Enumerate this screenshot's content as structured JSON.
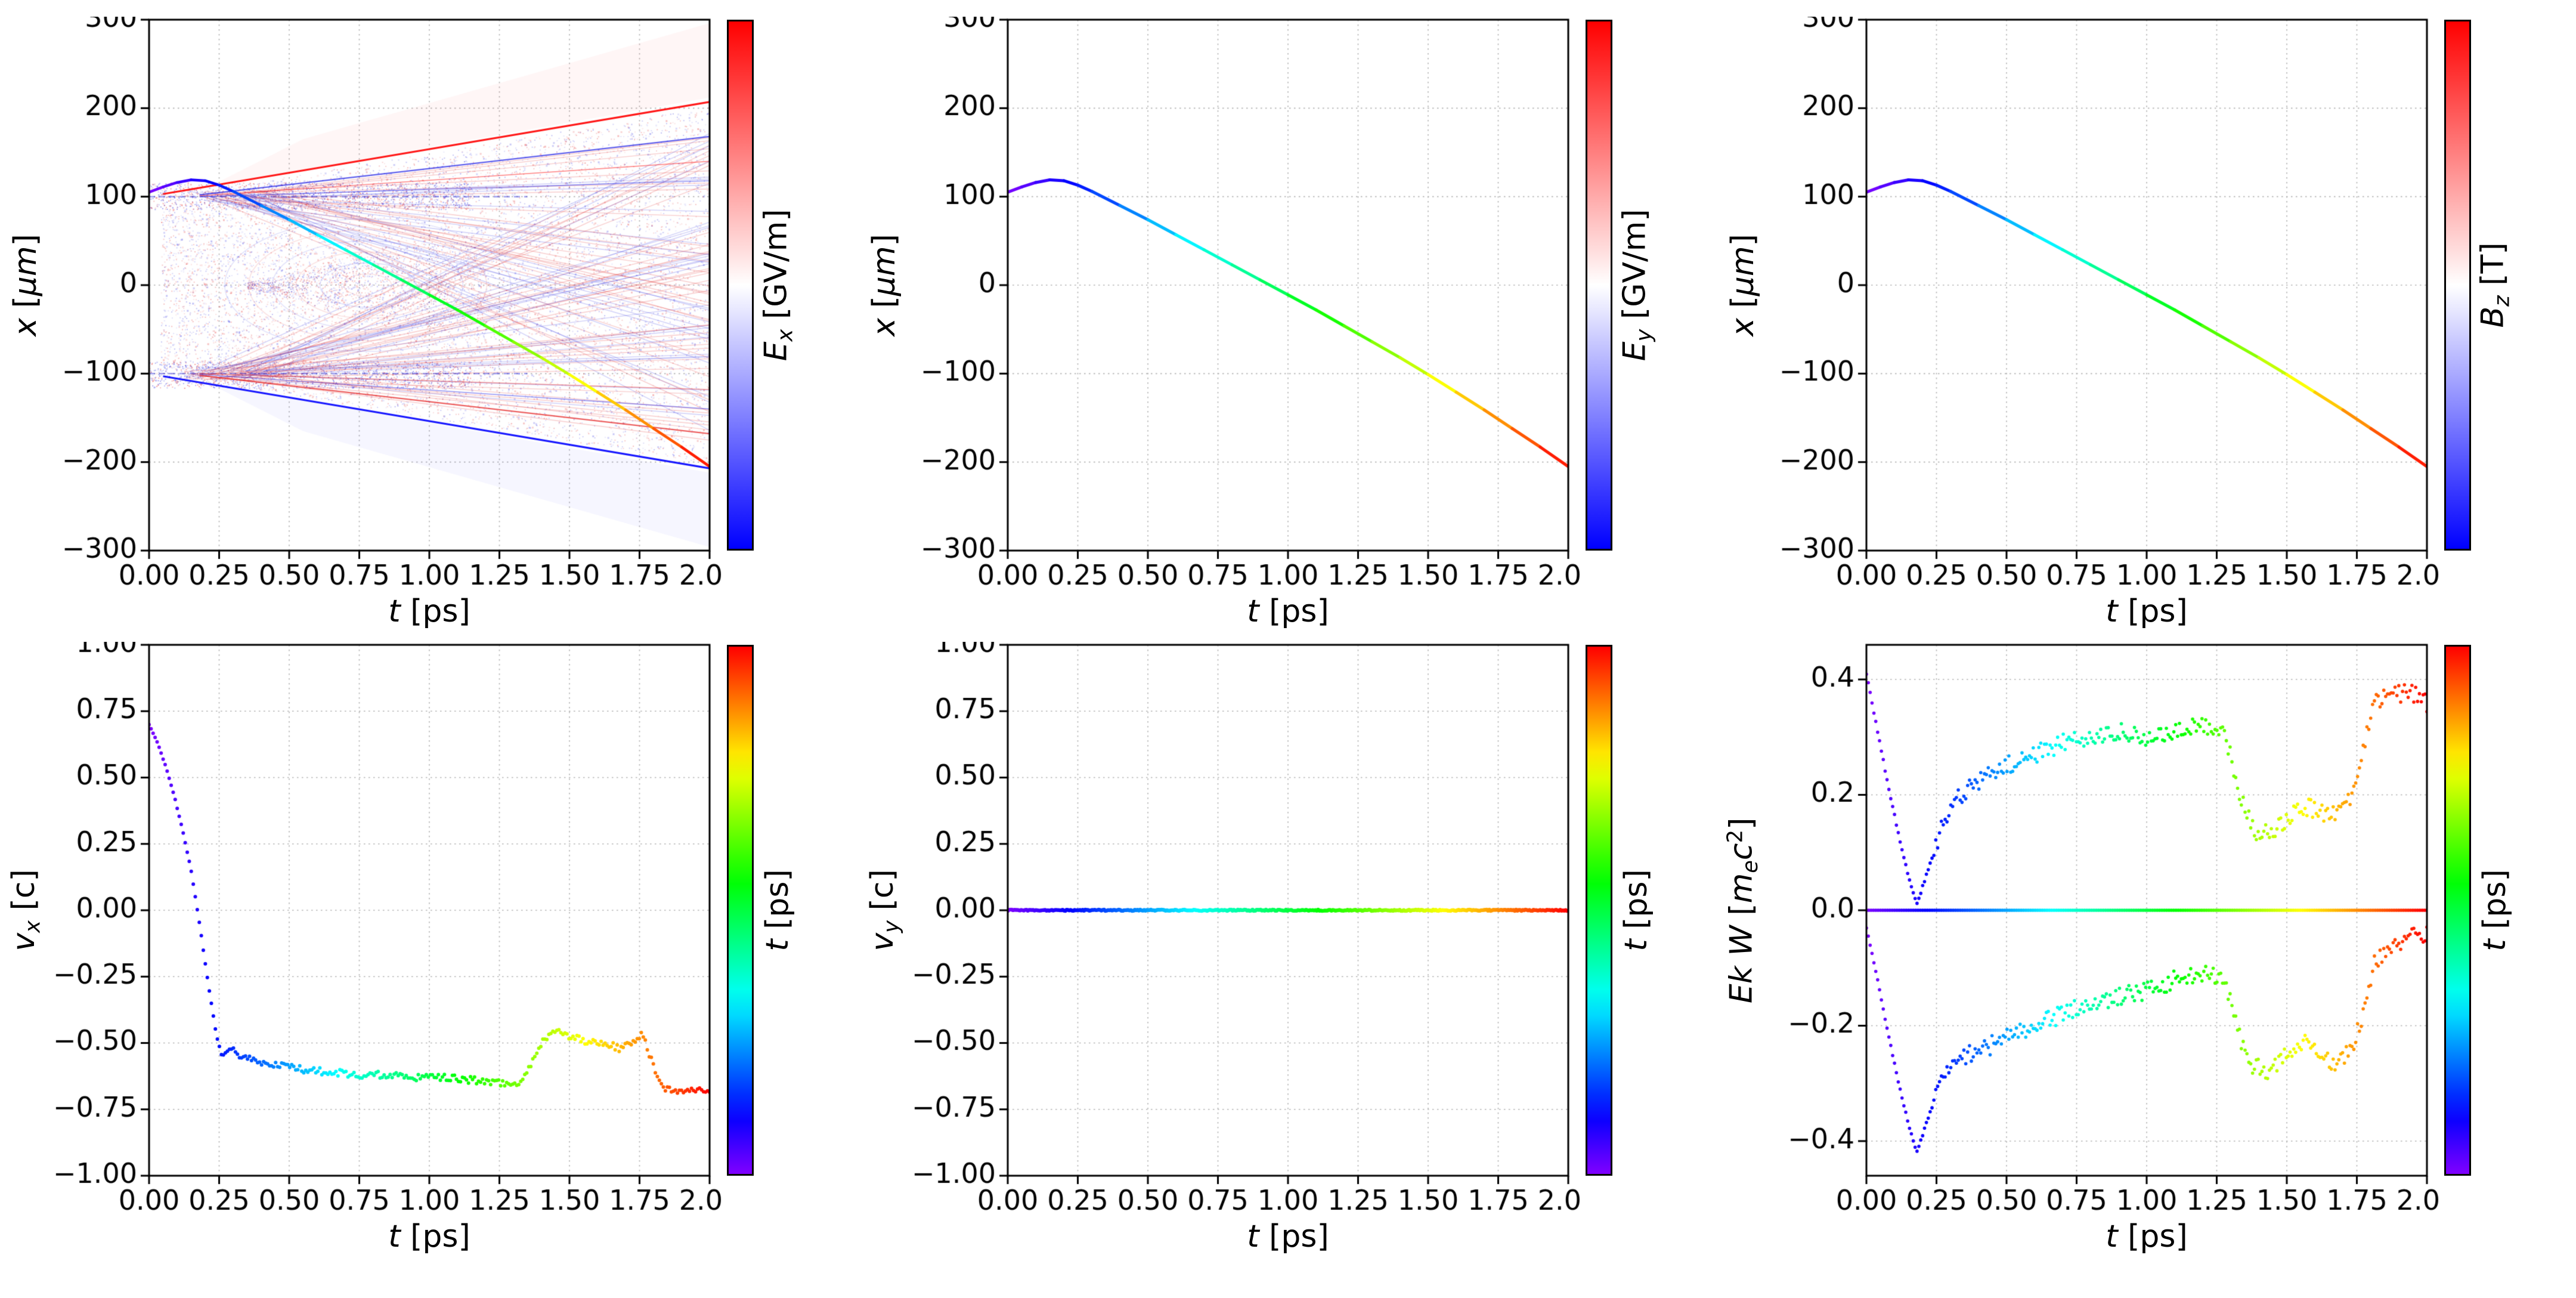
{
  "figure": {
    "background": "#ffffff",
    "grid_color": "#b5b5b5",
    "frame_color": "#000000"
  },
  "chart_data": {
    "type": "multi-panel",
    "layout": {
      "rows": 2,
      "cols": 3,
      "grid": "dotted",
      "legend": "none"
    },
    "colormaps": {
      "field": "bwr",
      "time": "rainbow"
    },
    "panels": [
      {
        "name": "x-vs-t-Ex-field",
        "type": "line",
        "xlim": [
          0,
          2
        ],
        "ylim": [
          -300,
          300
        ],
        "grid": true,
        "xticks": {
          "values": [
            0,
            0.25,
            0.5,
            0.75,
            1,
            1.25,
            1.5,
            1.75,
            2
          ],
          "labels": [
            "0.00",
            "0.25",
            "0.50",
            "0.75",
            "1.00",
            "1.25",
            "1.50",
            "1.75",
            "2.00"
          ]
        },
        "yticks": {
          "values": [
            -300,
            -200,
            -100,
            0,
            100,
            200,
            300
          ],
          "labels": [
            "−300",
            "−200",
            "−100",
            "0",
            "100",
            "200",
            "300"
          ]
        },
        "xlabel": [
          {
            "t": "t",
            "s": "i"
          },
          {
            "t": "  [ps]",
            "s": ""
          }
        ],
        "ylabel": [
          {
            "t": "x",
            "s": "i"
          },
          {
            "t": "  [",
            "s": ""
          },
          {
            "t": "μm",
            "s": "i"
          },
          {
            "t": "]",
            "s": ""
          }
        ],
        "colorbar": {
          "colormap": "bwr",
          "label": [
            {
              "t": "E",
              "s": "i"
            },
            {
              "t": "x",
              "s": "isub"
            },
            {
              "t": " [GV/m]",
              "s": ""
            }
          ]
        },
        "series": [
          {
            "type": "field"
          },
          {
            "type": "trajectory",
            "data": "trajectory",
            "width": 4.5
          }
        ]
      },
      {
        "name": "x-vs-t-Ey",
        "type": "line",
        "xlim": [
          0,
          2
        ],
        "ylim": [
          -300,
          300
        ],
        "grid": true,
        "xticks": {
          "values": [
            0,
            0.25,
            0.5,
            0.75,
            1,
            1.25,
            1.5,
            1.75,
            2
          ],
          "labels": [
            "0.00",
            "0.25",
            "0.50",
            "0.75",
            "1.00",
            "1.25",
            "1.50",
            "1.75",
            "2.00"
          ]
        },
        "yticks": {
          "values": [
            -300,
            -200,
            -100,
            0,
            100,
            200,
            300
          ],
          "labels": [
            "−300",
            "−200",
            "−100",
            "0",
            "100",
            "200",
            "300"
          ]
        },
        "xlabel": [
          {
            "t": "t",
            "s": "i"
          },
          {
            "t": "  [ps]",
            "s": ""
          }
        ],
        "ylabel": [
          {
            "t": "x",
            "s": "i"
          },
          {
            "t": "  [",
            "s": ""
          },
          {
            "t": "μm",
            "s": "i"
          },
          {
            "t": "]",
            "s": ""
          }
        ],
        "colorbar": {
          "colormap": "bwr",
          "label": [
            {
              "t": "E",
              "s": "i"
            },
            {
              "t": "y",
              "s": "isub"
            },
            {
              "t": " [GV/m]",
              "s": ""
            }
          ]
        },
        "series": [
          {
            "type": "trajectory",
            "data": "trajectory",
            "width": 5
          }
        ]
      },
      {
        "name": "x-vs-t-Bz",
        "type": "line",
        "xlim": [
          0,
          2
        ],
        "ylim": [
          -300,
          300
        ],
        "grid": true,
        "xticks": {
          "values": [
            0,
            0.25,
            0.5,
            0.75,
            1,
            1.25,
            1.5,
            1.75,
            2
          ],
          "labels": [
            "0.00",
            "0.25",
            "0.50",
            "0.75",
            "1.00",
            "1.25",
            "1.50",
            "1.75",
            "2.00"
          ]
        },
        "yticks": {
          "values": [
            -300,
            -200,
            -100,
            0,
            100,
            200,
            300
          ],
          "labels": [
            "−300",
            "−200",
            "−100",
            "0",
            "100",
            "200",
            "300"
          ]
        },
        "xlabel": [
          {
            "t": "t",
            "s": "i"
          },
          {
            "t": "  [ps]",
            "s": ""
          }
        ],
        "ylabel": [
          {
            "t": "x",
            "s": "i"
          },
          {
            "t": "  [",
            "s": ""
          },
          {
            "t": "μm",
            "s": "i"
          },
          {
            "t": "]",
            "s": ""
          }
        ],
        "colorbar": {
          "colormap": "bwr",
          "label": [
            {
              "t": "B",
              "s": "i"
            },
            {
              "t": "z",
              "s": "isub"
            },
            {
              "t": " [T]",
              "s": ""
            }
          ]
        },
        "series": [
          {
            "type": "trajectory",
            "data": "trajectory",
            "width": 5
          }
        ]
      },
      {
        "name": "vx-vs-t",
        "type": "scatter",
        "xlim": [
          0,
          2
        ],
        "ylim": [
          -1,
          1
        ],
        "grid": true,
        "xticks": {
          "values": [
            0,
            0.25,
            0.5,
            0.75,
            1,
            1.25,
            1.5,
            1.75,
            2
          ],
          "labels": [
            "0.00",
            "0.25",
            "0.50",
            "0.75",
            "1.00",
            "1.25",
            "1.50",
            "1.75",
            "2.00"
          ]
        },
        "yticks": {
          "values": [
            -1,
            -0.75,
            -0.5,
            -0.25,
            0,
            0.25,
            0.5,
            0.75,
            1
          ],
          "labels": [
            "−1.00",
            "−0.75",
            "−0.50",
            "−0.25",
            "0.00",
            "0.25",
            "0.50",
            "0.75",
            "1.00"
          ]
        },
        "xlabel": [
          {
            "t": "t",
            "s": "i"
          },
          {
            "t": "  [ps]",
            "s": ""
          }
        ],
        "ylabel": [
          {
            "t": "v",
            "s": "i"
          },
          {
            "t": "x",
            "s": "isub"
          },
          {
            "t": " [c]",
            "s": ""
          }
        ],
        "colorbar": {
          "colormap": "rainbow",
          "label": [
            {
              "t": "t",
              "s": "i"
            },
            {
              "t": "  [ps]",
              "s": ""
            }
          ]
        },
        "series": [
          {
            "type": "scatter",
            "data": "vx",
            "n": 280,
            "jitter": 0.013,
            "jitter_after": 0.3,
            "r": 3
          }
        ]
      },
      {
        "name": "vy-vs-t",
        "type": "scatter",
        "xlim": [
          0,
          2
        ],
        "ylim": [
          -1,
          1
        ],
        "grid": true,
        "xticks": {
          "values": [
            0,
            0.25,
            0.5,
            0.75,
            1,
            1.25,
            1.5,
            1.75,
            2
          ],
          "labels": [
            "0.00",
            "0.25",
            "0.50",
            "0.75",
            "1.00",
            "1.25",
            "1.50",
            "1.75",
            "2.00"
          ]
        },
        "yticks": {
          "values": [
            -1,
            -0.75,
            -0.5,
            -0.25,
            0,
            0.25,
            0.5,
            0.75,
            1
          ],
          "labels": [
            "−1.00",
            "−0.75",
            "−0.50",
            "−0.25",
            "0.00",
            "0.25",
            "0.50",
            "0.75",
            "1.00"
          ]
        },
        "xlabel": [
          {
            "t": "t",
            "s": "i"
          },
          {
            "t": "  [ps]",
            "s": ""
          }
        ],
        "ylabel": [
          {
            "t": "v",
            "s": "i"
          },
          {
            "t": "y",
            "s": "isub"
          },
          {
            "t": " [c]",
            "s": ""
          }
        ],
        "colorbar": {
          "colormap": "rainbow",
          "label": [
            {
              "t": "t",
              "s": "i"
            },
            {
              "t": "  [ps]",
              "s": ""
            }
          ]
        },
        "series": [
          {
            "type": "scatter",
            "data": "vy",
            "n": 420,
            "jitter": 0.0025,
            "jitter_after": 0,
            "r": 3.2
          }
        ]
      },
      {
        "name": "EkW-vs-t",
        "type": "scatter",
        "xlim": [
          0,
          2
        ],
        "ylim": [
          -0.46,
          0.46
        ],
        "grid": true,
        "xticks": {
          "values": [
            0,
            0.25,
            0.5,
            0.75,
            1,
            1.25,
            1.5,
            1.75,
            2
          ],
          "labels": [
            "0.00",
            "0.25",
            "0.50",
            "0.75",
            "1.00",
            "1.25",
            "1.50",
            "1.75",
            "2.00"
          ]
        },
        "yticks": {
          "values": [
            -0.4,
            -0.2,
            0,
            0.2,
            0.4
          ],
          "labels": [
            "−0.4",
            "−0.2",
            "0.0",
            "0.2",
            "0.4"
          ]
        },
        "xlabel": [
          {
            "t": "t",
            "s": "i"
          },
          {
            "t": "  [ps]",
            "s": ""
          }
        ],
        "ylabel": [
          {
            "t": "Ek W",
            "s": "i"
          },
          {
            "t": " [",
            "s": ""
          },
          {
            "t": "m",
            "s": "i"
          },
          {
            "t": "e",
            "s": "isub"
          },
          {
            "t": "c",
            "s": "i"
          },
          {
            "t": "2",
            "s": "sup"
          },
          {
            "t": "]",
            "s": ""
          }
        ],
        "colorbar": {
          "colormap": "rainbow",
          "label": [
            {
              "t": "t",
              "s": "i"
            },
            {
              "t": "  [ps]",
              "s": ""
            }
          ]
        },
        "series": [
          {
            "type": "line",
            "data": "zero",
            "width": 5
          },
          {
            "type": "scatter",
            "data": "ek",
            "n": 300,
            "jitter": 0.016,
            "jitter_after": 0.24,
            "r": 2.8
          },
          {
            "type": "scatter",
            "data": "w",
            "n": 300,
            "jitter": 0.016,
            "jitter_after": 0.24,
            "r": 2.8
          }
        ]
      }
    ],
    "trajectory": {
      "t": [
        0,
        0.05,
        0.1,
        0.15,
        0.2,
        0.25,
        0.3,
        0.4,
        0.5,
        0.6,
        0.7,
        0.8,
        0.9,
        1.0,
        1.1,
        1.2,
        1.3,
        1.4,
        1.5,
        1.6,
        1.7,
        1.8,
        1.9,
        2.0
      ],
      "x": [
        105,
        111,
        116,
        119,
        118,
        113,
        106,
        90,
        74,
        57,
        40,
        23,
        6,
        -11,
        -28,
        -46,
        -64,
        -82,
        -101,
        -121,
        -141,
        -162,
        -183,
        -205
      ]
    },
    "vx": {
      "anchors": [
        [
          0,
          0.7
        ],
        [
          0.03,
          0.63
        ],
        [
          0.06,
          0.54
        ],
        [
          0.09,
          0.43
        ],
        [
          0.12,
          0.3
        ],
        [
          0.15,
          0.15
        ],
        [
          0.18,
          -0.05
        ],
        [
          0.21,
          -0.27
        ],
        [
          0.24,
          -0.47
        ],
        [
          0.26,
          -0.55
        ],
        [
          0.29,
          -0.52
        ],
        [
          0.33,
          -0.55
        ],
        [
          0.38,
          -0.57
        ],
        [
          0.45,
          -0.58
        ],
        [
          0.55,
          -0.6
        ],
        [
          0.65,
          -0.61
        ],
        [
          0.75,
          -0.62
        ],
        [
          0.85,
          -0.62
        ],
        [
          0.95,
          -0.63
        ],
        [
          1.05,
          -0.63
        ],
        [
          1.15,
          -0.64
        ],
        [
          1.25,
          -0.65
        ],
        [
          1.32,
          -0.66
        ],
        [
          1.36,
          -0.58
        ],
        [
          1.41,
          -0.48
        ],
        [
          1.46,
          -0.46
        ],
        [
          1.52,
          -0.48
        ],
        [
          1.58,
          -0.5
        ],
        [
          1.63,
          -0.5
        ],
        [
          1.68,
          -0.52
        ],
        [
          1.72,
          -0.5
        ],
        [
          1.76,
          -0.46
        ],
        [
          1.79,
          -0.56
        ],
        [
          1.83,
          -0.67
        ],
        [
          1.9,
          -0.68
        ],
        [
          2.0,
          -0.68
        ]
      ]
    },
    "vy": {
      "anchors": [
        [
          0,
          0
        ],
        [
          2,
          0
        ]
      ]
    },
    "ek": {
      "anchors": [
        [
          0,
          0.41
        ],
        [
          0.04,
          0.31
        ],
        [
          0.08,
          0.21
        ],
        [
          0.12,
          0.12
        ],
        [
          0.15,
          0.06
        ],
        [
          0.18,
          0.01
        ],
        [
          0.22,
          0.07
        ],
        [
          0.26,
          0.13
        ],
        [
          0.3,
          0.18
        ],
        [
          0.36,
          0.21
        ],
        [
          0.42,
          0.23
        ],
        [
          0.5,
          0.25
        ],
        [
          0.6,
          0.27
        ],
        [
          0.7,
          0.29
        ],
        [
          0.8,
          0.3
        ],
        [
          0.9,
          0.31
        ],
        [
          1.0,
          0.3
        ],
        [
          1.1,
          0.31
        ],
        [
          1.2,
          0.32
        ],
        [
          1.28,
          0.31
        ],
        [
          1.33,
          0.2
        ],
        [
          1.38,
          0.14
        ],
        [
          1.44,
          0.13
        ],
        [
          1.5,
          0.16
        ],
        [
          1.56,
          0.18
        ],
        [
          1.62,
          0.17
        ],
        [
          1.68,
          0.17
        ],
        [
          1.73,
          0.19
        ],
        [
          1.77,
          0.27
        ],
        [
          1.81,
          0.36
        ],
        [
          1.87,
          0.37
        ],
        [
          1.93,
          0.38
        ],
        [
          2.0,
          0.36
        ]
      ]
    },
    "w": {
      "anchors": [
        [
          0,
          -0.03
        ],
        [
          0.04,
          -0.12
        ],
        [
          0.08,
          -0.22
        ],
        [
          0.12,
          -0.31
        ],
        [
          0.15,
          -0.37
        ],
        [
          0.18,
          -0.42
        ],
        [
          0.22,
          -0.36
        ],
        [
          0.26,
          -0.31
        ],
        [
          0.3,
          -0.27
        ],
        [
          0.36,
          -0.25
        ],
        [
          0.42,
          -0.24
        ],
        [
          0.5,
          -0.22
        ],
        [
          0.6,
          -0.2
        ],
        [
          0.7,
          -0.18
        ],
        [
          0.8,
          -0.16
        ],
        [
          0.9,
          -0.15
        ],
        [
          1.0,
          -0.14
        ],
        [
          1.1,
          -0.12
        ],
        [
          1.2,
          -0.11
        ],
        [
          1.28,
          -0.12
        ],
        [
          1.33,
          -0.22
        ],
        [
          1.38,
          -0.27
        ],
        [
          1.44,
          -0.28
        ],
        [
          1.5,
          -0.25
        ],
        [
          1.56,
          -0.23
        ],
        [
          1.62,
          -0.24
        ],
        [
          1.68,
          -0.27
        ],
        [
          1.73,
          -0.24
        ],
        [
          1.77,
          -0.18
        ],
        [
          1.81,
          -0.09
        ],
        [
          1.87,
          -0.06
        ],
        [
          1.93,
          -0.05
        ],
        [
          2.0,
          -0.04
        ]
      ]
    },
    "zero": {
      "anchors": [
        [
          0,
          0
        ],
        [
          2,
          0
        ]
      ]
    }
  }
}
